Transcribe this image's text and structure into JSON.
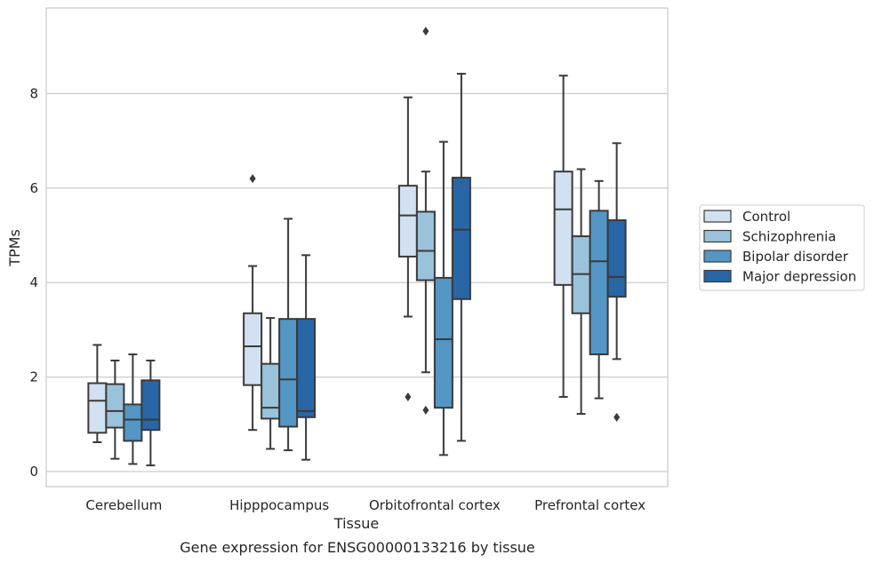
{
  "caption": "Gene expression for ENSG00000133216 by tissue",
  "chart_data": {
    "type": "boxplot",
    "xlabel": "Tissue",
    "ylabel": "TPMs",
    "ylim": [
      -0.3,
      9.8
    ],
    "yticks": [
      0,
      2,
      4,
      6,
      8
    ],
    "grid": true,
    "legend": "right",
    "categories": [
      "Cerebellum",
      "Hipppocampus",
      "Orbitofrontal cortex",
      "Prefrontal cortex"
    ],
    "series": [
      {
        "name": "Control",
        "color": "#d1e1f1",
        "boxes": [
          {
            "whislo": 0.62,
            "q1": 0.82,
            "med": 1.5,
            "q3": 1.87,
            "whishi": 2.68,
            "fliers": []
          },
          {
            "whislo": 0.88,
            "q1": 1.83,
            "med": 2.65,
            "q3": 3.35,
            "whishi": 4.35,
            "fliers": [
              6.2
            ]
          },
          {
            "whislo": 3.28,
            "q1": 4.55,
            "med": 5.42,
            "q3": 6.05,
            "whishi": 7.92,
            "fliers": [
              1.58
            ]
          },
          {
            "whislo": 1.58,
            "q1": 3.95,
            "med": 5.55,
            "q3": 6.35,
            "whishi": 8.38,
            "fliers": []
          }
        ]
      },
      {
        "name": "Schizophrenia",
        "color": "#9ac3db",
        "boxes": [
          {
            "whislo": 0.27,
            "q1": 0.93,
            "med": 1.28,
            "q3": 1.85,
            "whishi": 2.35,
            "fliers": []
          },
          {
            "whislo": 0.48,
            "q1": 1.12,
            "med": 1.35,
            "q3": 2.28,
            "whishi": 3.25,
            "fliers": []
          },
          {
            "whislo": 2.1,
            "q1": 4.05,
            "med": 4.67,
            "q3": 5.5,
            "whishi": 6.35,
            "fliers": [
              1.3,
              9.32
            ]
          },
          {
            "whislo": 1.22,
            "q1": 3.35,
            "med": 4.18,
            "q3": 4.98,
            "whishi": 6.4,
            "fliers": []
          }
        ]
      },
      {
        "name": "Bipolar disorder",
        "color": "#5496c4",
        "boxes": [
          {
            "whislo": 0.16,
            "q1": 0.65,
            "med": 1.1,
            "q3": 1.42,
            "whishi": 2.48,
            "fliers": []
          },
          {
            "whislo": 0.45,
            "q1": 0.95,
            "med": 1.95,
            "q3": 3.23,
            "whishi": 5.35,
            "fliers": []
          },
          {
            "whislo": 0.35,
            "q1": 1.35,
            "med": 2.8,
            "q3": 4.1,
            "whishi": 6.98,
            "fliers": []
          },
          {
            "whislo": 1.55,
            "q1": 2.48,
            "med": 4.45,
            "q3": 5.52,
            "whishi": 6.15,
            "fliers": []
          }
        ]
      },
      {
        "name": "Major depression",
        "color": "#2866a6",
        "boxes": [
          {
            "whislo": 0.13,
            "q1": 0.88,
            "med": 1.1,
            "q3": 1.93,
            "whishi": 2.35,
            "fliers": []
          },
          {
            "whislo": 0.25,
            "q1": 1.15,
            "med": 1.28,
            "q3": 3.23,
            "whishi": 4.58,
            "fliers": []
          },
          {
            "whislo": 0.65,
            "q1": 3.65,
            "med": 5.12,
            "q3": 6.22,
            "whishi": 8.42,
            "fliers": []
          },
          {
            "whislo": 2.38,
            "q1": 3.7,
            "med": 4.12,
            "q3": 5.32,
            "whishi": 6.95,
            "fliers": [
              1.15
            ]
          }
        ]
      }
    ]
  }
}
